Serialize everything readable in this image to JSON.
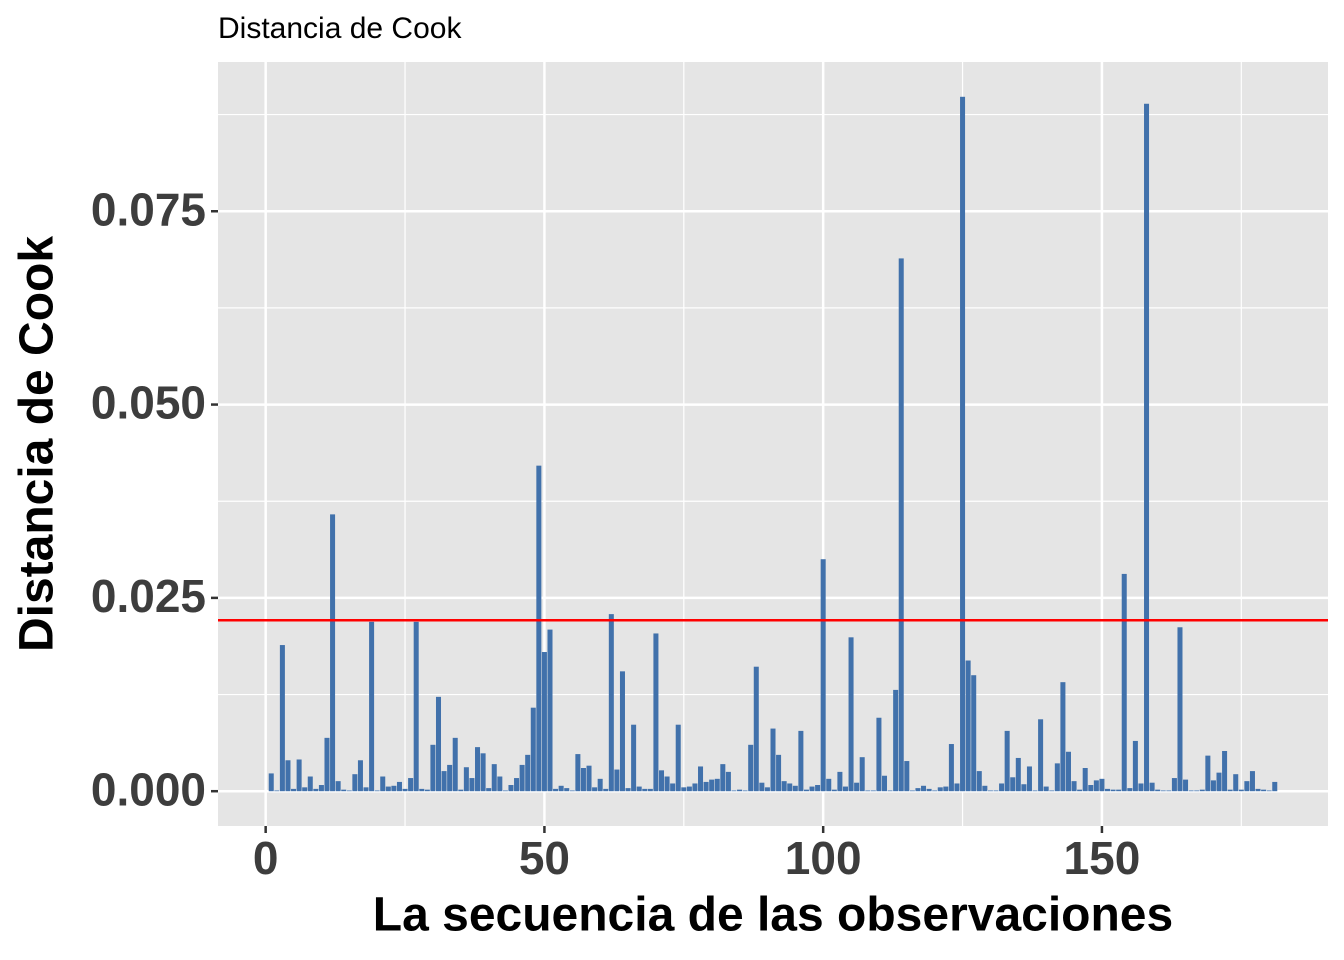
{
  "chart_data": {
    "type": "bar",
    "title": "Distancia de Cook",
    "x_label": "La secuencia de las observaciones",
    "y_label": "Distancia de Cook",
    "color": "#4171ab",
    "x": [
      1,
      2,
      3,
      4,
      5,
      6,
      7,
      8,
      9,
      10,
      11,
      12,
      13,
      14,
      15,
      16,
      17,
      18,
      19,
      20,
      21,
      22,
      23,
      24,
      25,
      26,
      27,
      28,
      29,
      30,
      31,
      32,
      33,
      34,
      35,
      36,
      37,
      38,
      39,
      40,
      41,
      42,
      43,
      44,
      45,
      46,
      47,
      48,
      49,
      50,
      51,
      52,
      53,
      54,
      55,
      56,
      57,
      58,
      59,
      60,
      61,
      62,
      63,
      64,
      65,
      66,
      67,
      68,
      69,
      70,
      71,
      72,
      73,
      74,
      75,
      76,
      77,
      78,
      79,
      80,
      81,
      82,
      83,
      84,
      85,
      86,
      87,
      88,
      89,
      90,
      91,
      92,
      93,
      94,
      95,
      96,
      97,
      98,
      99,
      100,
      101,
      102,
      103,
      104,
      105,
      106,
      107,
      108,
      109,
      110,
      111,
      112,
      113,
      114,
      115,
      116,
      117,
      118,
      119,
      120,
      121,
      122,
      123,
      124,
      125,
      126,
      127,
      128,
      129,
      130,
      131,
      132,
      133,
      134,
      135,
      136,
      137,
      138,
      139,
      140,
      141,
      142,
      143,
      144,
      145,
      146,
      147,
      148,
      149,
      150,
      151,
      152,
      153,
      154,
      155,
      156,
      157,
      158,
      159,
      160,
      161,
      162,
      163,
      164,
      165,
      166,
      167,
      168,
      169,
      170,
      171,
      172,
      173,
      174,
      175,
      176,
      177,
      178,
      179,
      180,
      181
    ],
    "values": [
      0.0023,
      0.0001,
      0.0189,
      0.004,
      0.0003,
      0.0041,
      0.0005,
      0.0019,
      0.0003,
      0.0008,
      0.0069,
      0.0358,
      0.0013,
      0.0002,
      0.0001,
      0.0022,
      0.004,
      0.0005,
      0.0219,
      0.0001,
      0.0019,
      0.0006,
      0.0007,
      0.0012,
      0.0003,
      0.0017,
      0.0219,
      0.0003,
      0.0002,
      0.006,
      0.0122,
      0.0026,
      0.0034,
      0.0069,
      0.0002,
      0.0031,
      0.0017,
      0.0057,
      0.0049,
      0.0004,
      0.0035,
      0.0019,
      0.0001,
      0.0008,
      0.0017,
      0.0034,
      0.0047,
      0.0108,
      0.0421,
      0.018,
      0.0209,
      0.0003,
      0.0007,
      0.0004,
      0.0001,
      0.0048,
      0.003,
      0.0033,
      0.0005,
      0.0016,
      0.0003,
      0.0229,
      0.0028,
      0.0155,
      0.0004,
      0.0086,
      0.0006,
      0.0003,
      0.0003,
      0.0204,
      0.0027,
      0.0019,
      0.001,
      0.0086,
      0.0005,
      0.0006,
      0.001,
      0.0032,
      0.0012,
      0.0015,
      0.0016,
      0.0035,
      0.0025,
      0.0001,
      0.0002,
      0.0001,
      0.006,
      0.0161,
      0.0011,
      0.0005,
      0.0081,
      0.0047,
      0.0013,
      0.001,
      0.0007,
      0.0078,
      0.0002,
      0.0006,
      0.0008,
      0.03,
      0.0016,
      0.0002,
      0.0025,
      0.0006,
      0.0199,
      0.0011,
      0.0044,
      0.0001,
      0.0001,
      0.0095,
      0.002,
      0.0001,
      0.0131,
      0.0689,
      0.0039,
      0.0001,
      0.0004,
      0.0007,
      0.0003,
      0.0001,
      0.0005,
      0.0006,
      0.0061,
      0.001,
      0.0898,
      0.0169,
      0.015,
      0.0026,
      0.0007,
      0.0001,
      0.0001,
      0.001,
      0.0078,
      0.0018,
      0.0043,
      0.0009,
      0.0032,
      0.0001,
      0.0093,
      0.0006,
      0.0001,
      0.0036,
      0.0141,
      0.0051,
      0.0013,
      0.0002,
      0.003,
      0.0008,
      0.0014,
      0.0016,
      0.0003,
      0.0002,
      0.0002,
      0.0281,
      0.0004,
      0.0065,
      0.001,
      0.0889,
      0.0011,
      0.0002,
      0.0001,
      0.0001,
      0.0017,
      0.0212,
      0.0015,
      0.0001,
      0.0001,
      0.0002,
      0.0046,
      0.0014,
      0.0024,
      0.0052,
      0.0002,
      0.0022,
      0.0002,
      0.0013,
      0.0026,
      0.0003,
      0.0002,
      0.0001,
      0.0012
    ],
    "bar_width": 0.9,
    "xlim": [
      -8.55,
      190.55
    ],
    "xticks": [
      0,
      50,
      100,
      150
    ],
    "ylim": [
      -0.0045,
      0.0943
    ],
    "yticks": [
      {
        "value": 0,
        "label": "0.000"
      },
      {
        "value": 0.025,
        "label": "0.025"
      },
      {
        "value": 0.05,
        "label": "0.050"
      },
      {
        "value": 0.075,
        "label": "0.075"
      }
    ],
    "hline": {
      "value": 0.0221,
      "color": "#ff0000"
    },
    "grid": true
  }
}
